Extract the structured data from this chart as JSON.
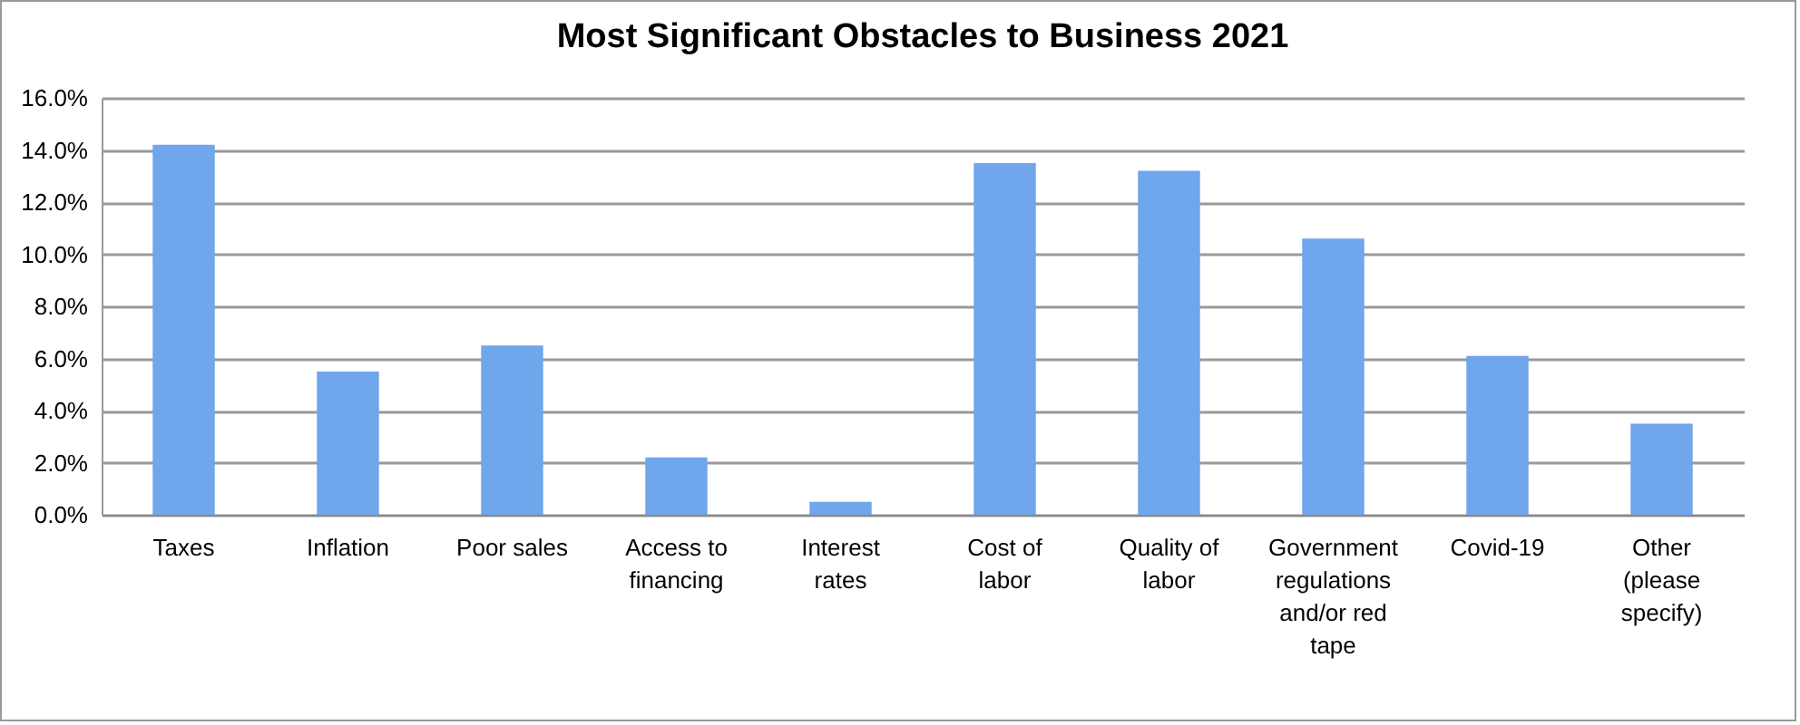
{
  "chart_data": {
    "type": "bar",
    "title": "Most Significant Obstacles to Business 2021",
    "categories": [
      "Taxes",
      "Inflation",
      "Poor sales",
      "Access to financing",
      "Interest rates",
      "Cost of labor",
      "Quality of labor",
      "Government regulations and/or red tape",
      "Covid-19",
      "Other (please specify)"
    ],
    "values": [
      14.2,
      5.5,
      6.5,
      2.2,
      0.5,
      13.5,
      13.2,
      10.6,
      6.1,
      3.5
    ],
    "color": "#6fa6ec",
    "ylim": [
      0,
      16
    ],
    "yticks": [
      {
        "value": 0,
        "label": "0.0%"
      },
      {
        "value": 2,
        "label": "2.0%"
      },
      {
        "value": 4,
        "label": "4.0%"
      },
      {
        "value": 6,
        "label": "6.0%"
      },
      {
        "value": 8,
        "label": "8.0%"
      },
      {
        "value": 10,
        "label": "10.0%"
      },
      {
        "value": 12,
        "label": "12.0%"
      },
      {
        "value": 14,
        "label": "14.0%"
      },
      {
        "value": 16,
        "label": "16.0%"
      }
    ],
    "grid": "y"
  }
}
